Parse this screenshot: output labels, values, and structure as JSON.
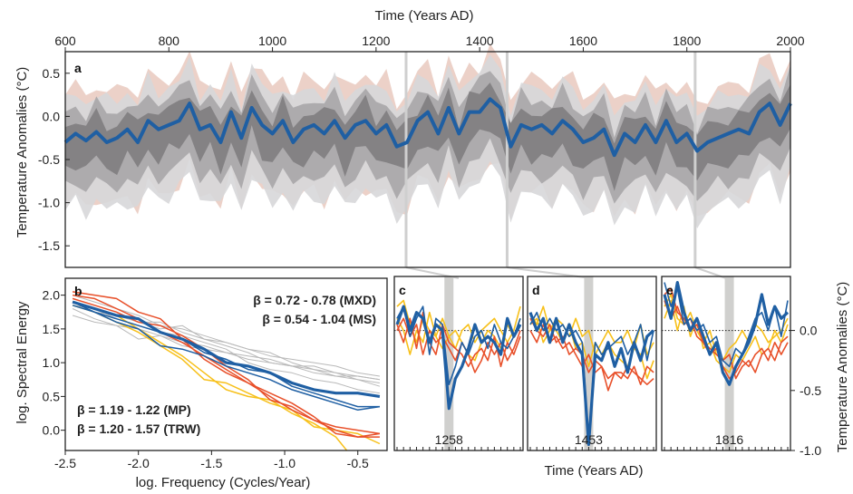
{
  "colors": {
    "mxd": "#1f5fa3",
    "ms": "#b9b9b9",
    "mp": "#f7c01a",
    "trw": "#e8502a",
    "band_dark": "#7d7a7c",
    "band_mid": "#a7a6a8",
    "band_light": "#d7d7d9",
    "trw_band": "#e6c2b5",
    "event": "#cfcfcf"
  },
  "chart_data": [
    {
      "type": "line",
      "panel": "a",
      "xlabel": "Time (Years AD)",
      "ylabel": "Temperature Anomalies (°C)",
      "xlim": [
        600,
        2000
      ],
      "ylim": [
        -1.75,
        0.75
      ],
      "xticks": [
        "600",
        "800",
        "1000",
        "1200",
        "1400",
        "1600",
        "1800",
        "2000"
      ],
      "xtick_values": [
        600,
        800,
        1000,
        1200,
        1400,
        1600,
        1800,
        2000
      ],
      "yticks": [
        "0.5",
        "0.0",
        "-0.5",
        "-1.0",
        "-1.5"
      ],
      "ytick_values": [
        0.5,
        0.0,
        -0.5,
        -1.0,
        -1.5
      ],
      "event_years": [
        1258,
        1453,
        1816
      ],
      "series": [
        {
          "x": [
            600,
            620,
            640,
            660,
            680,
            700,
            720,
            740,
            760,
            780,
            800,
            820,
            840,
            860,
            880,
            900,
            920,
            940,
            960,
            980,
            1000,
            1020,
            1040,
            1060,
            1080,
            1100,
            1120,
            1140,
            1160,
            1180,
            1200,
            1220,
            1240,
            1260,
            1280,
            1300,
            1320,
            1340,
            1360,
            1380,
            1400,
            1420,
            1440,
            1460,
            1480,
            1500,
            1520,
            1540,
            1560,
            1580,
            1600,
            1620,
            1640,
            1660,
            1680,
            1700,
            1720,
            1740,
            1760,
            1780,
            1800,
            1820,
            1840,
            1860,
            1880,
            1900,
            1920,
            1940,
            1960,
            1980,
            2000
          ],
          "y": [
            -0.3,
            -0.2,
            -0.28,
            -0.18,
            -0.3,
            -0.25,
            -0.15,
            -0.3,
            -0.05,
            -0.15,
            -0.1,
            -0.05,
            0.15,
            -0.15,
            -0.1,
            -0.3,
            0.05,
            -0.25,
            0.1,
            -0.1,
            -0.2,
            -0.05,
            -0.3,
            -0.15,
            -0.1,
            -0.2,
            -0.05,
            -0.25,
            -0.1,
            -0.05,
            -0.2,
            -0.1,
            -0.35,
            -0.3,
            -0.05,
            0.05,
            -0.2,
            0.1,
            -0.2,
            0.05,
            0.05,
            0.2,
            0.1,
            -0.35,
            -0.1,
            -0.15,
            -0.1,
            -0.2,
            -0.05,
            -0.15,
            -0.3,
            -0.25,
            -0.15,
            -0.45,
            -0.2,
            -0.3,
            -0.1,
            -0.3,
            -0.05,
            -0.3,
            -0.2,
            -0.4,
            -0.3,
            -0.25,
            -0.2,
            -0.15,
            -0.2,
            0.05,
            0.15,
            -0.1,
            0.15
          ]
        }
      ]
    },
    {
      "type": "line",
      "panel": "b",
      "xlabel": "log. Frequency (Cycles/Year)",
      "ylabel": "log. Spectral Energy",
      "xlim": [
        -2.5,
        -0.3
      ],
      "ylim": [
        -0.3,
        2.25
      ],
      "xticks": [
        "-2.5",
        "-2.0",
        "-1.5",
        "-1.0",
        "-0.5"
      ],
      "xtick_values": [
        -2.5,
        -2.0,
        -1.5,
        -1.0,
        -0.5
      ],
      "yticks": [
        "2.0",
        "1.5",
        "1.0",
        "0.5",
        "0.0"
      ],
      "ytick_values": [
        2.0,
        1.5,
        1.0,
        0.5,
        0.0
      ],
      "x": [
        -2.45,
        -2.3,
        -2.15,
        -2.0,
        -1.85,
        -1.7,
        -1.55,
        -1.4,
        -1.25,
        -1.1,
        -0.95,
        -0.8,
        -0.65,
        -0.5,
        -0.35
      ],
      "annotations": [
        "β = 0.72 - 0.78 (MXD)",
        "β = 0.54 - 1.04 (MS)",
        "β = 1.19 - 1.22 (MP)",
        "β = 1.20 - 1.57 (TRW)"
      ],
      "series": [
        {
          "group": "MS",
          "values": [
            1.95,
            1.85,
            1.75,
            1.6,
            1.5,
            1.55,
            1.35,
            1.3,
            1.2,
            1.15,
            1.0,
            0.9,
            0.85,
            0.75,
            0.7
          ]
        },
        {
          "group": "MS",
          "values": [
            1.8,
            1.65,
            1.55,
            1.5,
            1.4,
            1.3,
            1.25,
            1.15,
            1.1,
            1.05,
            0.95,
            0.95,
            0.85,
            0.8,
            0.75
          ]
        },
        {
          "group": "MS",
          "values": [
            2.0,
            1.9,
            1.8,
            1.7,
            1.55,
            1.5,
            1.4,
            1.3,
            1.2,
            1.1,
            1.05,
            1.0,
            0.95,
            0.85,
            0.8
          ]
        },
        {
          "group": "MS",
          "values": [
            1.9,
            1.75,
            1.7,
            1.6,
            1.6,
            1.45,
            1.35,
            1.25,
            1.15,
            1.0,
            0.95,
            0.85,
            0.8,
            0.75,
            0.65
          ]
        },
        {
          "group": "MS",
          "values": [
            1.7,
            1.6,
            1.55,
            1.35,
            1.4,
            1.25,
            1.2,
            1.15,
            1.05,
            1.0,
            0.95,
            0.9,
            0.8,
            0.8,
            0.75
          ]
        },
        {
          "group": "MS",
          "values": [
            1.85,
            1.8,
            1.65,
            1.55,
            1.45,
            1.4,
            1.3,
            1.2,
            1.0,
            0.9,
            0.85,
            0.75,
            0.7,
            0.6,
            0.55
          ]
        },
        {
          "group": "MP",
          "values": [
            1.85,
            1.75,
            1.6,
            1.45,
            1.25,
            1.05,
            0.75,
            0.7,
            0.55,
            0.4,
            0.3,
            0.05,
            0.0,
            -0.05,
            -0.2
          ]
        },
        {
          "group": "MP",
          "values": [
            1.9,
            1.8,
            1.7,
            1.5,
            1.3,
            1.1,
            0.85,
            0.6,
            0.5,
            0.45,
            0.25,
            0.1,
            -0.1,
            -0.5,
            -0.7
          ]
        },
        {
          "group": "TRW",
          "values": [
            2.05,
            2.0,
            1.95,
            1.75,
            1.65,
            1.35,
            1.05,
            0.85,
            0.7,
            0.5,
            0.3,
            0.15,
            0.0,
            -0.1,
            -0.1
          ]
        },
        {
          "group": "TRW",
          "values": [
            2.0,
            1.95,
            1.8,
            1.65,
            1.45,
            1.3,
            1.1,
            0.9,
            0.7,
            0.55,
            0.4,
            0.2,
            -0.05,
            -0.1,
            -0.05
          ]
        },
        {
          "group": "TRW",
          "values": [
            1.95,
            1.85,
            1.75,
            1.6,
            1.55,
            1.4,
            1.2,
            0.95,
            0.75,
            0.45,
            0.35,
            0.15,
            0.05,
            0.0,
            -0.05
          ]
        },
        {
          "group": "MXD",
          "values": [
            1.85,
            1.75,
            1.65,
            1.55,
            1.45,
            1.35,
            1.15,
            1.05,
            0.9,
            0.85,
            0.65,
            0.55,
            0.45,
            0.35,
            0.35
          ]
        },
        {
          "group": "MXD",
          "values": [
            1.9,
            1.75,
            1.6,
            1.5,
            1.25,
            1.2,
            1.1,
            0.95,
            0.85,
            0.75,
            0.6,
            0.5,
            0.4,
            0.3,
            0.35
          ]
        },
        {
          "group": "MXD_thick",
          "values": [
            1.9,
            1.8,
            1.7,
            1.65,
            1.45,
            1.35,
            1.2,
            1.0,
            0.95,
            0.85,
            0.7,
            0.6,
            0.55,
            0.55,
            0.5
          ]
        }
      ]
    },
    {
      "type": "line",
      "panel": "c",
      "event_label": "1258",
      "event_index": 8,
      "ylim": [
        -1.0,
        0.45
      ],
      "series": [
        {
          "group": "MP",
          "values": [
            0.2,
            0.25,
            0.05,
            -0.1,
            0.1,
            0.0,
            -0.05,
            0.1,
            -0.05,
            -0.15,
            0.0,
            0.05,
            -0.1,
            0.0,
            0.05,
            0.1,
            0.0,
            -0.1,
            0.0,
            0.2
          ]
        },
        {
          "group": "MP",
          "values": [
            0.1,
            0.0,
            -0.2,
            0.0,
            -0.1,
            0.15,
            -0.05,
            -0.15,
            -0.05,
            0.0,
            -0.1,
            -0.2,
            -0.25,
            -0.1,
            0.0,
            -0.05,
            -0.15,
            0.05,
            -0.05,
            0.1
          ]
        },
        {
          "group": "TRW",
          "values": [
            0.05,
            -0.1,
            0.1,
            -0.15,
            0.15,
            -0.1,
            -0.2,
            0.05,
            -0.1,
            -0.15,
            -0.2,
            -0.3,
            -0.2,
            -0.15,
            -0.25,
            -0.05,
            -0.3,
            -0.1,
            -0.2,
            -0.05
          ]
        },
        {
          "group": "TRW",
          "values": [
            0.0,
            0.1,
            -0.05,
            0.05,
            -0.2,
            0.0,
            -0.1,
            -0.05,
            -0.15,
            -0.25,
            -0.1,
            -0.2,
            -0.35,
            -0.25,
            -0.1,
            -0.2,
            -0.1,
            -0.25,
            -0.15,
            0.0
          ]
        },
        {
          "group": "MXD",
          "values": [
            0.1,
            0.2,
            -0.05,
            0.1,
            0.2,
            -0.2,
            0.1,
            0.05,
            -0.45,
            -0.3,
            -0.1,
            -0.2,
            -0.05,
            0.0,
            -0.15,
            0.05,
            -0.1,
            -0.15,
            -0.05,
            0.1
          ]
        },
        {
          "group": "MXD_thick",
          "values": [
            0.05,
            0.2,
            0.0,
            0.15,
            0.1,
            -0.1,
            0.05,
            0.0,
            -0.65,
            -0.4,
            -0.3,
            -0.15,
            0.05,
            -0.1,
            -0.05,
            -0.1,
            -0.2,
            0.1,
            -0.05,
            0.05
          ]
        }
      ]
    },
    {
      "type": "line",
      "panel": "d",
      "event_label": "1453",
      "event_index": 9,
      "ylim": [
        -1.0,
        0.45
      ],
      "series": [
        {
          "group": "MP",
          "values": [
            0.15,
            0.05,
            0.2,
            0.0,
            0.1,
            0.05,
            -0.05,
            0.1,
            -0.05,
            0.0,
            -0.2,
            -0.1,
            0.0,
            -0.1,
            -0.1,
            0.0,
            -0.15,
            0.05,
            -0.2,
            -0.1
          ]
        },
        {
          "group": "MP",
          "values": [
            0.05,
            0.1,
            -0.1,
            0.0,
            0.0,
            -0.1,
            0.05,
            -0.15,
            -0.1,
            -0.3,
            -0.1,
            -0.2,
            -0.1,
            -0.2,
            -0.25,
            -0.3,
            -0.15,
            -0.2,
            -0.4,
            -0.25
          ]
        },
        {
          "group": "TRW",
          "values": [
            0.0,
            -0.1,
            0.05,
            -0.1,
            -0.05,
            -0.15,
            -0.1,
            -0.2,
            -0.3,
            -0.2,
            -0.35,
            -0.3,
            -0.4,
            -0.35,
            -0.35,
            -0.4,
            -0.3,
            -0.45,
            -0.3,
            -0.35
          ]
        },
        {
          "group": "TRW",
          "values": [
            0.1,
            0.0,
            -0.05,
            0.05,
            -0.1,
            -0.05,
            -0.2,
            -0.15,
            -0.2,
            -0.35,
            -0.25,
            -0.3,
            -0.5,
            -0.35,
            -0.4,
            -0.3,
            -0.35,
            -0.4,
            -0.45,
            -0.4
          ]
        },
        {
          "group": "MXD",
          "values": [
            0.05,
            0.15,
            0.0,
            0.1,
            0.0,
            0.05,
            -0.05,
            0.0,
            -0.1,
            -0.95,
            -0.1,
            -0.2,
            -0.15,
            -0.1,
            -0.05,
            -0.2,
            -0.1,
            0.05,
            -0.25,
            0.0
          ]
        },
        {
          "group": "MXD_thick",
          "values": [
            0.15,
            0.0,
            0.1,
            -0.1,
            0.1,
            -0.1,
            0.05,
            -0.1,
            -0.2,
            -0.95,
            -0.2,
            -0.25,
            -0.1,
            -0.3,
            -0.15,
            -0.35,
            -0.1,
            -0.25,
            -0.05,
            0.0
          ]
        }
      ]
    },
    {
      "type": "line",
      "panel": "e",
      "event_label": "1816",
      "event_index": 10,
      "ylim": [
        -1.0,
        0.45
      ],
      "series": [
        {
          "group": "MP",
          "values": [
            0.2,
            0.3,
            0.1,
            0.05,
            0.15,
            0.0,
            -0.1,
            0.0,
            -0.2,
            -0.25,
            -0.15,
            -0.1,
            0.0,
            -0.1,
            0.05,
            0.0,
            -0.1,
            -0.05,
            0.0,
            0.1
          ]
        },
        {
          "group": "MP",
          "values": [
            0.1,
            0.25,
            0.0,
            0.2,
            -0.05,
            0.1,
            -0.15,
            -0.1,
            -0.25,
            -0.3,
            -0.35,
            -0.2,
            -0.25,
            -0.15,
            -0.05,
            -0.2,
            -0.15,
            0.0,
            -0.1,
            0.05
          ]
        },
        {
          "group": "TRW",
          "values": [
            0.3,
            0.35,
            0.15,
            0.1,
            0.0,
            0.05,
            -0.1,
            -0.2,
            -0.15,
            -0.3,
            -0.4,
            -0.35,
            -0.25,
            -0.3,
            -0.2,
            -0.15,
            -0.25,
            -0.1,
            -0.2,
            -0.1
          ]
        },
        {
          "group": "TRW",
          "values": [
            0.25,
            0.1,
            0.2,
            0.05,
            0.1,
            -0.05,
            -0.1,
            -0.15,
            -0.2,
            -0.25,
            -0.2,
            -0.4,
            -0.3,
            -0.25,
            -0.35,
            -0.2,
            -0.15,
            -0.25,
            -0.1,
            -0.05
          ]
        },
        {
          "group": "MXD",
          "values": [
            0.4,
            0.2,
            0.35,
            0.05,
            0.1,
            0.0,
            0.05,
            -0.1,
            -0.05,
            -0.25,
            -0.3,
            -0.15,
            -0.2,
            -0.05,
            0.1,
            0.15,
            0.0,
            0.2,
            -0.05,
            0.25
          ]
        },
        {
          "group": "MXD_thick",
          "values": [
            0.3,
            0.1,
            0.4,
            0.15,
            0.0,
            0.1,
            -0.05,
            -0.2,
            -0.1,
            -0.35,
            -0.45,
            -0.3,
            -0.2,
            -0.1,
            0.05,
            0.3,
            0.05,
            0.2,
            0.1,
            0.15
          ]
        }
      ]
    }
  ],
  "shared": {
    "inset_xlabel": "Time (Years AD)",
    "inset_ylabel": "Temperature Anomalies (°C)",
    "inset_yticks": [
      "0.0",
      "-0.5",
      "-1.0"
    ],
    "inset_ytick_values": [
      0.0,
      -0.5,
      -1.0
    ]
  }
}
